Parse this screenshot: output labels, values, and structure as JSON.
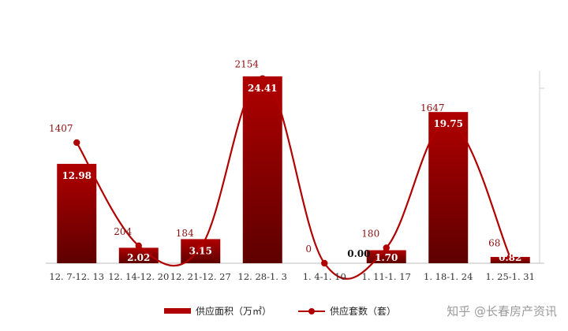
{
  "chart_data": {
    "type": "bar",
    "categories": [
      "12.7-12.13",
      "12.14-12.20",
      "12.21-12.27",
      "12.28-1.3",
      "1.4-1.10",
      "1.11-1.17",
      "1.18-1.24",
      "1.25-1.31"
    ],
    "series": [
      {
        "name": "供应面积（万㎡）",
        "type": "bar",
        "axis": "left",
        "values": [
          12.98,
          2.02,
          3.15,
          24.41,
          0.0,
          1.7,
          19.75,
          0.82
        ],
        "labels": [
          "12.98",
          "2.02",
          "3.15",
          "24.41",
          "0.00",
          "1.70",
          "19.75",
          "0.82"
        ]
      },
      {
        "name": "供应套数（套）",
        "type": "line",
        "axis": "right",
        "smooth": true,
        "values": [
          1407,
          204,
          184,
          2154,
          0,
          180,
          1647,
          68
        ],
        "labels": [
          "1407",
          "204",
          "184",
          "2154",
          "0",
          "180",
          "1647",
          "68"
        ]
      }
    ],
    "y_left_range": [
      0,
      28
    ],
    "y_right_range": [
      0,
      2500
    ],
    "legend_position": "bottom",
    "grid": false,
    "colors": {
      "bar": "#b00000",
      "bar_dark": "#5e0000",
      "line": "#b00000",
      "label": "#8a1010"
    }
  },
  "watermark": "知乎 @长春房产资讯"
}
